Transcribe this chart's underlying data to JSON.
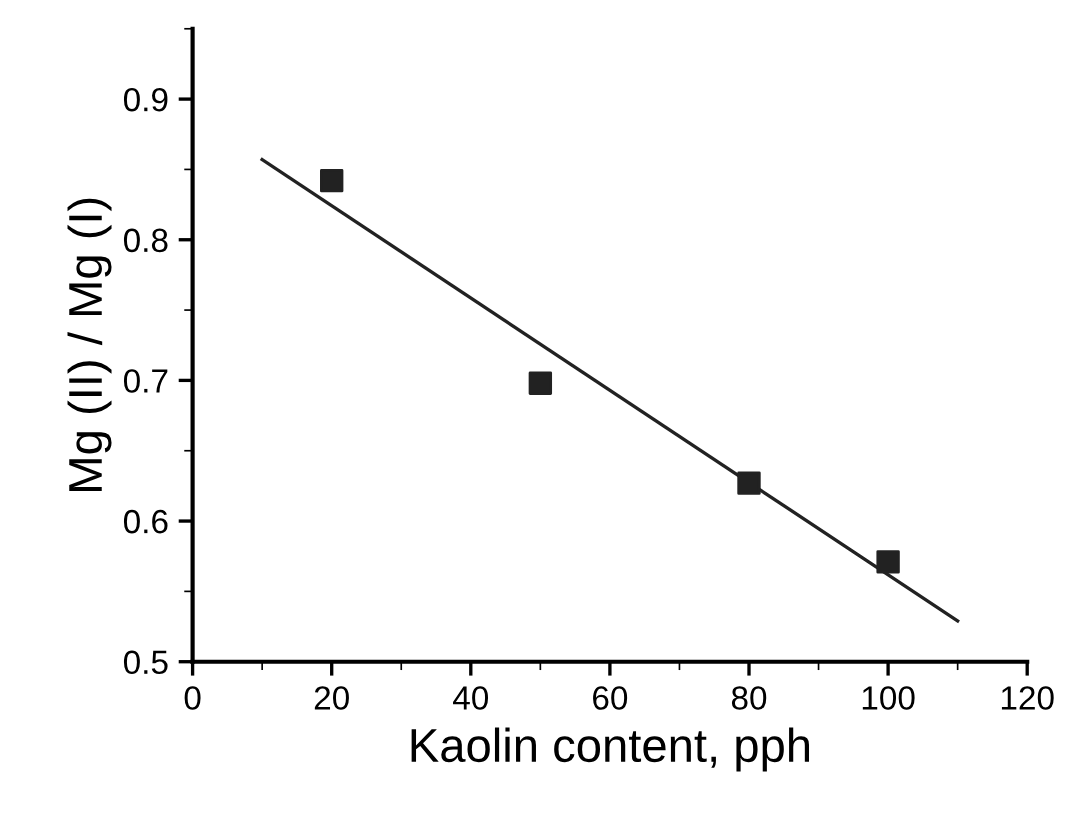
{
  "chart_data": {
    "type": "scatter",
    "xlabel": "Kaolin content, pph",
    "ylabel": "Mg (II) / Mg (I)",
    "xlim": [
      0,
      120
    ],
    "xticks": [
      0,
      20,
      40,
      60,
      80,
      100,
      120
    ],
    "ylim": [
      0.5,
      0.95
    ],
    "yticks": [
      0.5,
      0.6,
      0.7,
      0.8,
      0.9
    ],
    "grid": false,
    "marker": "square",
    "legend": false,
    "series": [
      {
        "color": "#222222",
        "x": [
          20,
          50,
          80,
          100
        ],
        "values": [
          0.842,
          0.698,
          0.627,
          0.571
        ]
      },
      {
        "type": "line",
        "color": "#222222",
        "x": [
          10,
          110
        ],
        "values": [
          0.857,
          0.529
        ],
        "marker": "none",
        "line_style": "solid"
      }
    ]
  }
}
